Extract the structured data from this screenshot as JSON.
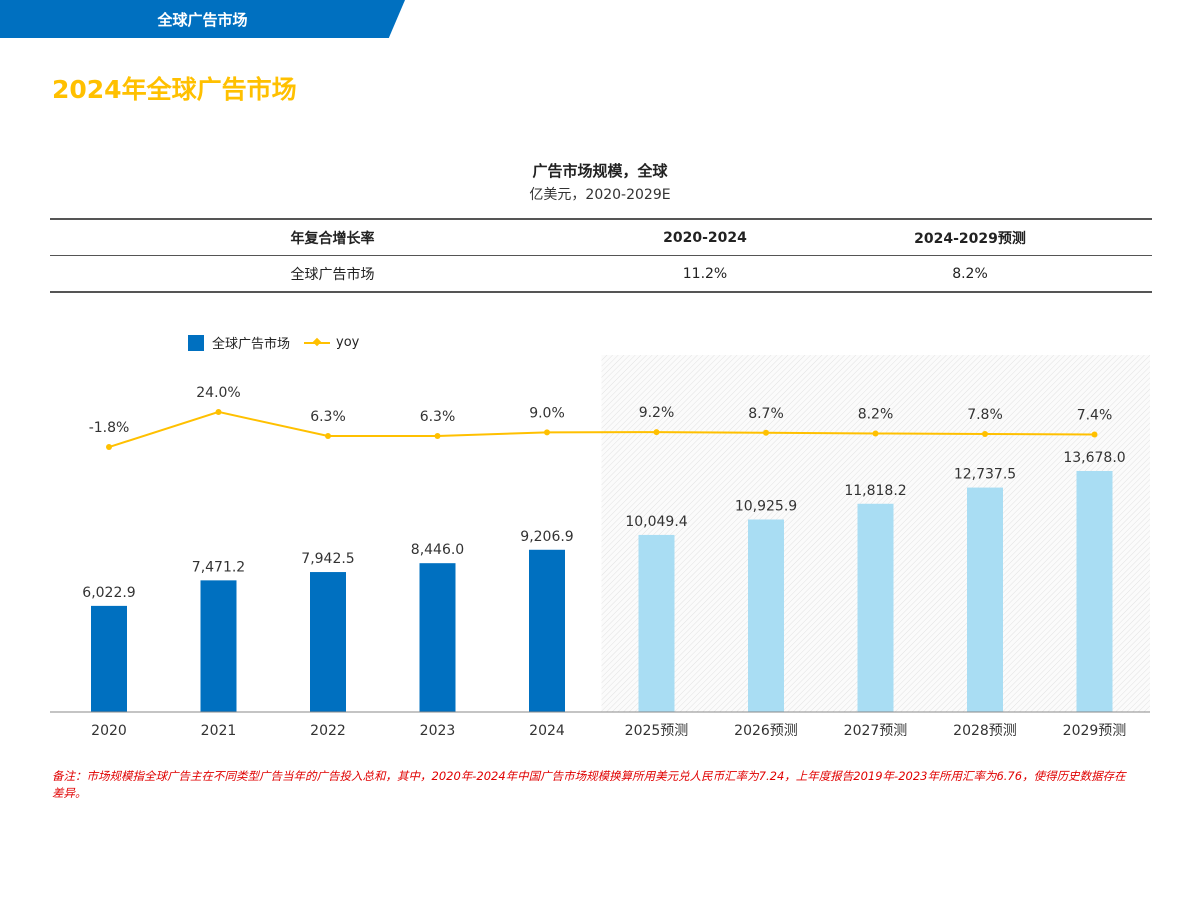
{
  "header": {
    "banner": "全球广告市场",
    "page_title": "2024年全球广告市场"
  },
  "cagr_table": {
    "headers": [
      "年复合增长率",
      "2020-2024",
      "2024-2029预测"
    ],
    "rows": [
      [
        "全球广告市场",
        "11.2%",
        "8.2%"
      ]
    ]
  },
  "colors": {
    "actual": "#0070c0",
    "forecast": "#a9ddf3",
    "yoy": "#ffc000",
    "title": "#ffc000",
    "banner": "#0070c0",
    "note": "#e00000"
  },
  "chart_data": {
    "type": "bar+line",
    "title": "广告市场规模，全球",
    "subtitle": "亿美元，2020-2029E",
    "categories": [
      "2020",
      "2021",
      "2022",
      "2023",
      "2024",
      "2025预测",
      "2026预测",
      "2027预测",
      "2028预测",
      "2029预测"
    ],
    "series": [
      {
        "name": "全球广告市场",
        "type": "bar",
        "values": [
          6022.9,
          7471.2,
          7942.5,
          8446.0,
          9206.9,
          10049.4,
          10925.9,
          11818.2,
          12737.5,
          13678.0
        ],
        "labels": [
          "6,022.9",
          "7,471.2",
          "7,942.5",
          "8,446.0",
          "9,206.9",
          "10,049.4",
          "10,925.9",
          "11,818.2",
          "12,737.5",
          "13,678.0"
        ]
      },
      {
        "name": "yoy",
        "type": "line",
        "values": [
          -1.8,
          24.0,
          6.3,
          6.3,
          9.0,
          9.2,
          8.7,
          8.2,
          7.8,
          7.4
        ],
        "labels": [
          "-1.8%",
          "24.0%",
          "6.3%",
          "6.3%",
          "9.0%",
          "9.2%",
          "8.7%",
          "8.2%",
          "7.8%",
          "7.4%"
        ]
      }
    ],
    "forecast_from_index": 5,
    "legend": "top-left",
    "grid": false
  },
  "note": "备注：市场规模指全球广告主在不同类型广告当年的广告投入总和，其中，2020年-2024年中国广告市场规模换算所用美元兑人民币汇率为7.24，上年度报告2019年-2023年所用汇率为6.76，使得历史数据存在差异。"
}
